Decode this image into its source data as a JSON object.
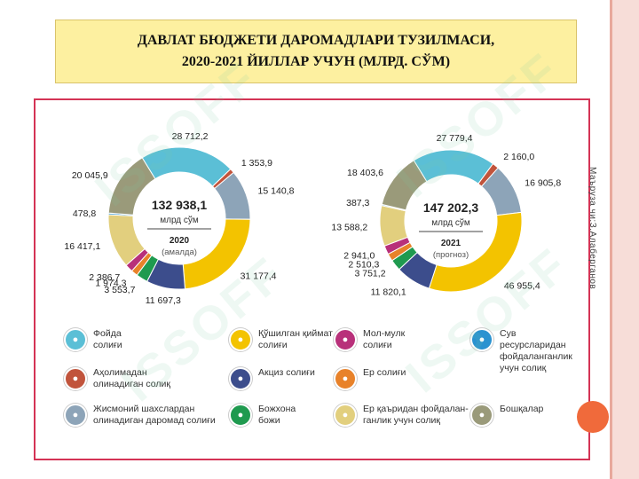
{
  "title": "ДАВЛАТ БЮДЖЕТИ ДАРОМАДЛАРИ ТУЗИЛМАСИ,\n2020-2021 ЙИЛЛАР УЧУН  (МЛРД. СЎМ)",
  "side_text": "Маъруза чи:З.Алаберганов",
  "watermark": "ISSOFF",
  "legend": [
    {
      "label": "Фойда\nсолиғи",
      "color": "#5bbfd6",
      "icon": "profit-tax-icon"
    },
    {
      "label": "Қўшилган қиймат\nсолиғи",
      "color": "#f3c300",
      "icon": "vat-icon"
    },
    {
      "label": "Мол-мулк\nсолиғи",
      "color": "#b8307a",
      "icon": "property-tax-icon"
    },
    {
      "label": "Сув\nресурсларидан\nфойдаланганлик\nучун солиқ",
      "color": "#2a92d0",
      "icon": "water-tax-icon"
    },
    {
      "label": "Аҳолимадан\nолинадиган солиқ",
      "color": "#c1543c",
      "icon": "population-tax-icon"
    },
    {
      "label": "Акциз солиғи",
      "color": "#3c4d8c",
      "icon": "excise-tax-icon"
    },
    {
      "label": "Ер солиғи",
      "color": "#e8822a",
      "icon": "land-tax-icon"
    },
    {
      "label": "Жисмоний шахслардан\nолинадиган даромад солиғи",
      "color": "#8da4b8",
      "icon": "income-tax-icon"
    },
    {
      "label": "Божхона\nбожи",
      "color": "#1f9a4f",
      "icon": "customs-icon"
    },
    {
      "label": "Ер қаъридан фойдалан-\nганлик учун солиқ",
      "color": "#e2cf7e",
      "icon": "subsoil-tax-icon"
    },
    {
      "label": "Бошқалар",
      "color": "#9a9a7a",
      "icon": "others-icon"
    }
  ],
  "chart_data": [
    {
      "type": "pie",
      "center_total": "132 938,1",
      "center_unit": "млрд сўм",
      "center_year": "2020",
      "center_note": "(амалда)",
      "slices": [
        {
          "name": "Фойда солиғи",
          "value": 28712.2,
          "label": "28 712,2",
          "color": "#5bbfd6"
        },
        {
          "name": "Аҳолимадан олинадиган солиқ",
          "value": 1353.9,
          "label": "1 353,9",
          "color": "#c1543c"
        },
        {
          "name": "Жисмоний шахслардан олинадиган даромад солиғи",
          "value": 15140.8,
          "label": "15 140,8",
          "color": "#8da4b8"
        },
        {
          "name": "Қўшилган қиймат солиғи",
          "value": 31177.4,
          "label": "31 177,4",
          "color": "#f3c300"
        },
        {
          "name": "Акциз солиғи",
          "value": 11697.3,
          "label": "11 697,3",
          "color": "#3c4d8c"
        },
        {
          "name": "Божхона божи",
          "value": 3553.7,
          "label": "3 553,7",
          "color": "#1f9a4f"
        },
        {
          "name": "Ер солиғи",
          "value": 1974.3,
          "label": "1 974,3",
          "color": "#e8822a"
        },
        {
          "name": "Мол-мулк солиғи",
          "value": 2386.7,
          "label": "2 386,7",
          "color": "#b8307a"
        },
        {
          "name": "Ер қаъридан фойдаланганлик учун солиқ",
          "value": 16417.1,
          "label": "16 417,1",
          "color": "#e2cf7e"
        },
        {
          "name": "Сув ресурсларидан фойдаланганлик учун солиқ",
          "value": 478.8,
          "label": "478,8",
          "color": "#2a92d0"
        },
        {
          "name": "Бошқалар",
          "value": 20045.9,
          "label": "20 045,9",
          "color": "#9a9a7a"
        }
      ]
    },
    {
      "type": "pie",
      "center_total": "147 202,3",
      "center_unit": "млрд сўм",
      "center_year": "2021",
      "center_note": "(прогноз)",
      "slices": [
        {
          "name": "Фойда солиғи",
          "value": 27779.4,
          "label": "27 779,4",
          "color": "#5bbfd6"
        },
        {
          "name": "Аҳолимадан олинадиган солиқ",
          "value": 2160.0,
          "label": "2 160,0",
          "color": "#c1543c"
        },
        {
          "name": "Жисмоний шахслардан олинадиган даромад солиғи",
          "value": 16905.8,
          "label": "16 905,8",
          "color": "#8da4b8"
        },
        {
          "name": "Қўшилган қиймат солиғи",
          "value": 46955.4,
          "label": "46 955,4",
          "color": "#f3c300"
        },
        {
          "name": "Акциз солиғи",
          "value": 11820.1,
          "label": "11 820,1",
          "color": "#3c4d8c"
        },
        {
          "name": "Божхона божи",
          "value": 3751.2,
          "label": "3 751,2",
          "color": "#1f9a4f"
        },
        {
          "name": "Ер солиғи",
          "value": 2510.3,
          "label": "2 510,3",
          "color": "#e8822a"
        },
        {
          "name": "Мол-мулк солиғи",
          "value": 2941.0,
          "label": "2 941,0",
          "color": "#b8307a"
        },
        {
          "name": "Ер қаъридан фойдаланганлик учун солиқ",
          "value": 13588.2,
          "label": "13 588,2",
          "color": "#e2cf7e"
        },
        {
          "name": "Сув ресурсларидан фойдаланганлик учун солиқ",
          "value": 387.3,
          "label": "387,3",
          "color": "#2a92d0"
        },
        {
          "name": "Бошқалар",
          "value": 18403.6,
          "label": "18 403,6",
          "color": "#9a9a7a"
        }
      ]
    }
  ]
}
